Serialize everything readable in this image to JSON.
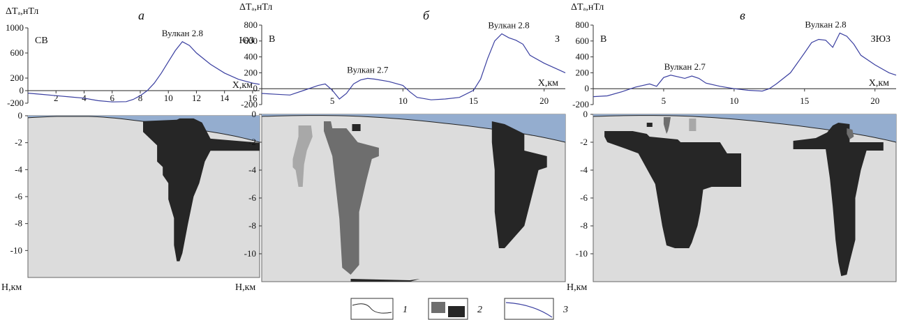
{
  "colors": {
    "water": "#94adcf",
    "background": "#dcdcdc",
    "body_light": "#a8a8a8",
    "body_mid": "#6e6e6e",
    "body_dark": "#262626",
    "anomaly": "#3a3fa0"
  },
  "legend": [
    {
      "num": "1",
      "kind": "relief"
    },
    {
      "num": "2",
      "kind": "bodies"
    },
    {
      "num": "3",
      "kind": "anomaly"
    }
  ],
  "chart_data": [
    {
      "id": "a",
      "type": "line",
      "tag": "а",
      "dir_left": "СВ",
      "dir_right": "ЮЗ",
      "ylabel": "ΔTₐ,нТл",
      "xlabel": "X,км",
      "hlabel": "Н,км",
      "xlim": [
        0,
        16.5
      ],
      "ylim": [
        -200,
        1000
      ],
      "yticks": [
        "1000",
        "600",
        "200",
        "0",
        "-200"
      ],
      "xticks": [
        "2",
        "4",
        "6",
        "8",
        "10",
        "12",
        "14",
        "16"
      ],
      "depth_ticks": [
        "0",
        "-2",
        "-4",
        "-6",
        "-8",
        "-10"
      ],
      "volcanoes": [
        {
          "label": "Вулкан 2.8",
          "x": 11.0
        }
      ],
      "series": [
        {
          "x": [
            0,
            1,
            2,
            3,
            4,
            5,
            6,
            7,
            7.5,
            8,
            8.5,
            9,
            9.5,
            10,
            10.5,
            11,
            11.5,
            12,
            13,
            14,
            15,
            16,
            16.5
          ],
          "y": [
            -40,
            -60,
            -80,
            -100,
            -120,
            -160,
            -180,
            -175,
            -140,
            -80,
            0,
            120,
            280,
            460,
            640,
            780,
            720,
            600,
            420,
            280,
            180,
            120,
            100
          ]
        }
      ],
      "depth_range": [
        0,
        -12
      ],
      "bodies": [
        {
          "shade": "dark",
          "x": [
            8.2,
            10.6,
            10.8,
            11.8,
            12.4,
            12.6,
            13.0,
            16.5,
            16.5,
            13.4,
            13.0,
            12.6,
            12.4,
            12.2,
            11.8,
            11.4,
            11.0,
            10.8,
            10.6,
            10.4,
            10.4,
            10.0,
            10.0,
            9.6,
            9.6,
            9.2,
            9.2,
            8.2
          ],
          "y": [
            -0.4,
            -0.3,
            -0.2,
            -0.2,
            -0.5,
            -0.9,
            -1.7,
            -2.0,
            -2.6,
            -2.6,
            -2.6,
            -3.4,
            -4.2,
            -5.0,
            -6.0,
            -8.0,
            -10.2,
            -10.8,
            -10.8,
            -9.6,
            -7.6,
            -6.2,
            -5.0,
            -4.4,
            -3.8,
            -3.4,
            -2.2,
            -1.2
          ]
        }
      ]
    },
    {
      "id": "b",
      "type": "line",
      "tag": "б",
      "dir_left": "В",
      "dir_right": "З",
      "ylabel": "ΔTₐ,нТл",
      "xlabel": "X,км",
      "hlabel": "Н,км",
      "xlim": [
        0,
        21.5
      ],
      "ylim": [
        -200,
        800
      ],
      "yticks": [
        "800",
        "600",
        "400",
        "200",
        "0",
        "-200"
      ],
      "xticks": [
        "5",
        "10",
        "15",
        "20"
      ],
      "depth_ticks": [
        "0",
        "-2",
        "-4",
        "-6",
        "-8",
        "-10"
      ],
      "volcanoes": [
        {
          "label": "Вулкан 2.7",
          "x": 7.5
        },
        {
          "label": "Вулкан 2.8",
          "x": 17.5
        }
      ],
      "series": [
        {
          "x": [
            0,
            1,
            2,
            3,
            4,
            4.5,
            5,
            5.5,
            6,
            6.5,
            7,
            7.5,
            8,
            9,
            10,
            10.5,
            11,
            12,
            13,
            14,
            15,
            15.5,
            16,
            16.5,
            17,
            17.5,
            18,
            18.5,
            19,
            20,
            21,
            21.5
          ],
          "y": [
            -60,
            -70,
            -80,
            -20,
            40,
            60,
            -20,
            -130,
            -60,
            60,
            110,
            130,
            120,
            90,
            40,
            -40,
            -110,
            -140,
            -130,
            -110,
            -20,
            120,
            380,
            600,
            690,
            640,
            610,
            560,
            420,
            320,
            240,
            200
          ]
        }
      ],
      "depth_range": [
        0,
        -12
      ],
      "bodies": [
        {
          "shade": "light",
          "x": [
            2.6,
            3.5,
            3.6,
            3.2,
            3.0,
            2.9,
            2.6,
            2.4,
            2.2,
            2.2,
            2.6
          ],
          "y": [
            -0.8,
            -0.8,
            -1.6,
            -2.6,
            -3.6,
            -5.2,
            -5.2,
            -4.0,
            -3.8,
            -3.2,
            -1.6
          ]
        },
        {
          "shade": "mid",
          "x": [
            4.4,
            4.9,
            5.0,
            6.0,
            6.8,
            8.3,
            8.3,
            7.8,
            7.4,
            6.9,
            6.9,
            6.3,
            5.7,
            5.5,
            5.0,
            4.4
          ],
          "y": [
            -0.5,
            -0.5,
            -1.0,
            -1.0,
            -2.0,
            -2.4,
            -3.0,
            -3.2,
            -4.8,
            -7.0,
            -10.8,
            -11.5,
            -11.0,
            -7.5,
            -3.0,
            -1.2
          ]
        },
        {
          "shade": "dark",
          "x": [
            6.4,
            7.0,
            7.0,
            6.4
          ],
          "y": [
            -0.7,
            -0.7,
            -1.2,
            -1.2
          ]
        },
        {
          "shade": "dark",
          "x": [
            16.3,
            17.2,
            17.8,
            18.6,
            18.6,
            20.2,
            20.2,
            19.6,
            18.6,
            17.2,
            16.8,
            16.5,
            16.5,
            16.3
          ],
          "y": [
            -0.5,
            -0.7,
            -1.0,
            -1.4,
            -2.6,
            -3.0,
            -3.8,
            -4.0,
            -8.0,
            -9.6,
            -9.6,
            -7.0,
            -4.0,
            -2.0
          ]
        },
        {
          "shade": "dark",
          "x": [
            6.3,
            10.5,
            11.2,
            10.5,
            6.3
          ],
          "y": [
            -11.8,
            -11.9,
            -11.8,
            -12.0,
            -12.0
          ]
        }
      ]
    },
    {
      "id": "v",
      "type": "line",
      "tag": "в",
      "dir_left": "В",
      "dir_right": "ЗЮЗ",
      "ylabel": "ΔTₐ,нТл",
      "xlabel": "X,км",
      "hlabel": "Н,км",
      "xlim": [
        0,
        21.5
      ],
      "ylim": [
        -200,
        800
      ],
      "yticks": [
        "800",
        "600",
        "400",
        "200",
        "0",
        "-200"
      ],
      "xticks": [
        "5",
        "10",
        "15",
        "20"
      ],
      "depth_ticks": [
        "0",
        "-2",
        "-4",
        "-6",
        "-8",
        "-10"
      ],
      "volcanoes": [
        {
          "label": "Вулкан 2.7",
          "x": 6.5
        },
        {
          "label": "Вулкан 2.8",
          "x": 16.5
        }
      ],
      "series": [
        {
          "x": [
            0,
            1,
            2,
            3,
            4,
            4.5,
            5,
            5.5,
            6,
            6.5,
            7,
            7.5,
            8,
            9,
            10,
            11,
            12,
            12.5,
            13,
            14,
            15,
            15.5,
            16,
            16.5,
            17,
            17.5,
            18,
            18.5,
            19,
            20,
            21,
            21.5
          ],
          "y": [
            -100,
            -90,
            -40,
            20,
            60,
            30,
            140,
            170,
            150,
            130,
            160,
            130,
            70,
            30,
            0,
            -20,
            -30,
            0,
            60,
            200,
            450,
            580,
            620,
            610,
            520,
            700,
            660,
            560,
            420,
            300,
            200,
            170
          ]
        }
      ],
      "depth_range": [
        0,
        -12
      ],
      "bodies": [
        {
          "shade": "dark",
          "x": [
            0.8,
            2.8,
            3.8,
            4.0,
            6.0,
            6.2,
            9.0,
            9.5,
            10.5,
            10.5,
            8.4,
            7.8,
            7.6,
            7.4,
            7.2,
            7.0,
            6.8,
            6.6,
            6.4,
            5.8,
            5.2,
            4.9,
            4.4,
            3.2,
            2.4,
            1.0,
            0.8
          ],
          "y": [
            -1.2,
            -1.2,
            -1.4,
            -1.6,
            -1.8,
            -2.0,
            -2.0,
            -2.8,
            -2.8,
            -5.2,
            -5.2,
            -5.4,
            -7.0,
            -8.0,
            -8.6,
            -9.2,
            -9.6,
            -9.6,
            -9.6,
            -9.6,
            -9.4,
            -8.0,
            -5.0,
            -2.8,
            -2.5,
            -2.0,
            -1.6
          ]
        },
        {
          "shade": "dark",
          "x": [
            14.2,
            15.8,
            16.6,
            17.0,
            17.4,
            18.2,
            18.2,
            20.6,
            20.6,
            19.4,
            19.0,
            18.6,
            18.6,
            18.2,
            18.0,
            17.6,
            17.4,
            17.2,
            17.0,
            16.8,
            16.5,
            14.2
          ],
          "y": [
            -1.9,
            -1.7,
            -1.3,
            -0.8,
            -0.6,
            -0.7,
            -2.0,
            -2.0,
            -2.6,
            -2.6,
            -4.0,
            -6.0,
            -9.0,
            -10.6,
            -11.5,
            -11.6,
            -10.6,
            -9.0,
            -6.6,
            -4.6,
            -2.5,
            -2.5
          ]
        },
        {
          "shade": "mid",
          "x": [
            5.0,
            5.5,
            5.4,
            5.3,
            5.2,
            5.0
          ],
          "y": [
            -0.2,
            -0.2,
            -0.8,
            -1.2,
            -1.4,
            -0.7
          ]
        },
        {
          "shade": "light",
          "x": [
            6.8,
            7.3,
            7.3,
            6.8
          ],
          "y": [
            -0.3,
            -0.3,
            -1.2,
            -1.2
          ]
        },
        {
          "shade": "mid",
          "x": [
            18.0,
            18.4,
            18.5,
            18.2,
            18.0
          ],
          "y": [
            -1.0,
            -1.1,
            -1.6,
            -1.8,
            -1.4
          ]
        },
        {
          "shade": "dark",
          "x": [
            3.8,
            4.2,
            4.2,
            3.8
          ],
          "y": [
            -0.6,
            -0.6,
            -0.9,
            -0.9
          ]
        }
      ]
    }
  ]
}
